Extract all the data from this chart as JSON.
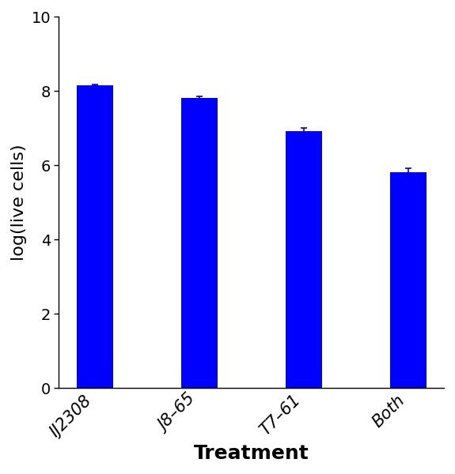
{
  "categories": [
    "IJ2308",
    "J8–65",
    "T7–61",
    "Both"
  ],
  "values": [
    8.15,
    7.82,
    6.92,
    5.82
  ],
  "errors": [
    0.02,
    0.04,
    0.08,
    0.1
  ],
  "bar_color": "#0000FF",
  "bar_width": 0.35,
  "ylim": [
    0,
    10
  ],
  "yticks": [
    0,
    2,
    4,
    6,
    8,
    10
  ],
  "ylabel": "log(live cells)",
  "xlabel": "Treatment",
  "xlabel_fontsize": 18,
  "ylabel_fontsize": 16,
  "tick_fontsize": 14,
  "xtick_fontsize": 15,
  "background_color": "#ffffff",
  "error_color": "#0000CC",
  "capsize": 3,
  "error_linewidth": 1.2
}
